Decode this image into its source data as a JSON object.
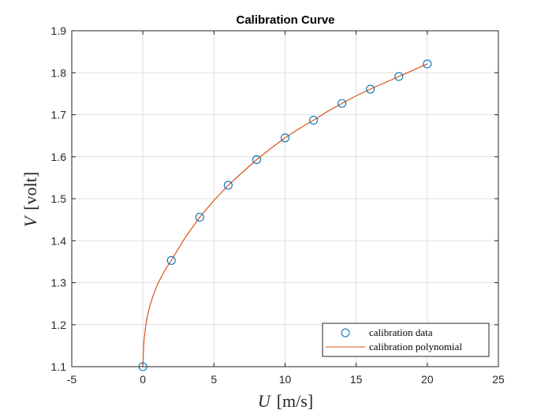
{
  "chart_data": {
    "type": "line",
    "title": "Calibration Curve",
    "xlabel": "U [m/s]",
    "xlabel_parts": {
      "var": "U",
      "unit": "[m/s]"
    },
    "ylabel": "V [volt]",
    "ylabel_parts": {
      "var": "V",
      "unit": "[volt]"
    },
    "xlim": [
      -5,
      25
    ],
    "ylim": [
      1.1,
      1.9
    ],
    "xticks": [
      "-5",
      "0",
      "5",
      "10",
      "15",
      "20",
      "25"
    ],
    "yticks": [
      "1.1",
      "1.2",
      "1.3",
      "1.4",
      "1.5",
      "1.6",
      "1.7",
      "1.8",
      "1.9"
    ],
    "grid": true,
    "legend_position": "bottom-right",
    "series": [
      {
        "name": "calibration data",
        "style": "markers",
        "marker": "circle",
        "color": "#0072BD",
        "x": [
          0,
          2,
          4,
          6,
          8,
          10,
          12,
          14,
          16,
          18,
          20
        ],
        "y": [
          1.1,
          1.353,
          1.456,
          1.532,
          1.593,
          1.645,
          1.687,
          1.727,
          1.761,
          1.791,
          1.821
        ]
      },
      {
        "name": "calibration polynomial",
        "style": "line",
        "color": "#D95319",
        "x": [
          0,
          0.05,
          0.1,
          0.2,
          0.35,
          0.5,
          0.75,
          1,
          1.5,
          2,
          3,
          4,
          5,
          6,
          7,
          8,
          9,
          10,
          11,
          12,
          13,
          14,
          15,
          16,
          17,
          18,
          19,
          20
        ],
        "y": [
          1.1,
          1.15,
          1.17,
          1.198,
          1.226,
          1.246,
          1.272,
          1.294,
          1.327,
          1.353,
          1.409,
          1.456,
          1.496,
          1.532,
          1.563,
          1.593,
          1.62,
          1.645,
          1.667,
          1.687,
          1.708,
          1.727,
          1.745,
          1.761,
          1.776,
          1.791,
          1.806,
          1.821
        ]
      }
    ]
  }
}
